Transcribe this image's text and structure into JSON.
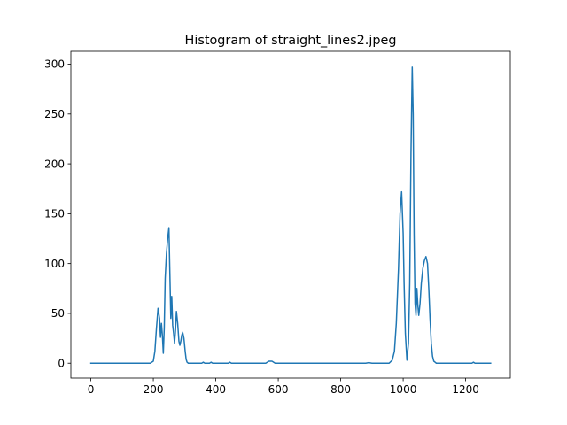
{
  "chart_data": {
    "type": "line",
    "title": "Histogram of straight_lines2.jpeg",
    "xlabel": "",
    "ylabel": "",
    "xlim": [
      -64,
      1343
    ],
    "ylim": [
      -14.9,
      312.9
    ],
    "xticks": [
      0,
      200,
      400,
      600,
      800,
      1000,
      1200
    ],
    "yticks": [
      0,
      50,
      100,
      150,
      200,
      250,
      300
    ],
    "grid": false,
    "legend": "none",
    "colors": {
      "line": "#1f77b4",
      "axes": "#000000",
      "background": "#ffffff"
    },
    "series": [
      {
        "x": [
          0,
          190,
          200,
          205,
          210,
          215,
          220,
          223,
          226,
          229,
          232,
          235,
          238,
          242,
          246,
          250,
          253,
          256,
          259,
          262,
          265,
          268,
          271,
          274,
          278,
          282,
          285,
          288,
          291,
          294,
          298,
          302,
          305,
          308,
          312,
          315,
          320,
          325,
          330,
          340,
          355,
          360,
          365,
          380,
          385,
          390,
          440,
          445,
          450,
          560,
          565,
          570,
          575,
          580,
          585,
          590,
          880,
          890,
          900,
          955,
          965,
          972,
          978,
          985,
          990,
          995,
          1000,
          1003,
          1007,
          1012,
          1017,
          1021,
          1025,
          1029,
          1032,
          1035,
          1038,
          1041,
          1044,
          1047,
          1050,
          1054,
          1058,
          1063,
          1068,
          1073,
          1078,
          1082,
          1086,
          1090,
          1094,
          1098,
          1102,
          1106,
          1110,
          1118,
          1130,
          1220,
          1225,
          1230,
          1280
        ],
        "values": [
          0,
          0,
          2,
          12,
          35,
          55,
          45,
          26,
          40,
          28,
          10,
          35,
          85,
          110,
          125,
          136,
          90,
          45,
          67,
          38,
          30,
          20,
          33,
          52,
          40,
          22,
          18,
          22,
          28,
          31,
          25,
          12,
          4,
          1,
          0,
          0,
          0,
          0,
          0,
          0,
          0,
          1,
          0,
          0,
          1,
          0,
          0,
          1,
          0,
          0,
          1,
          2,
          2,
          2,
          1,
          0,
          0,
          0.5,
          0,
          0,
          3,
          12,
          40,
          95,
          150,
          172,
          130,
          80,
          30,
          3,
          20,
          80,
          210,
          297,
          250,
          130,
          60,
          48,
          75,
          58,
          48,
          60,
          80,
          95,
          103,
          107,
          100,
          75,
          45,
          20,
          7,
          2,
          1,
          0,
          0,
          0,
          0,
          0,
          1,
          0,
          0
        ]
      }
    ]
  }
}
